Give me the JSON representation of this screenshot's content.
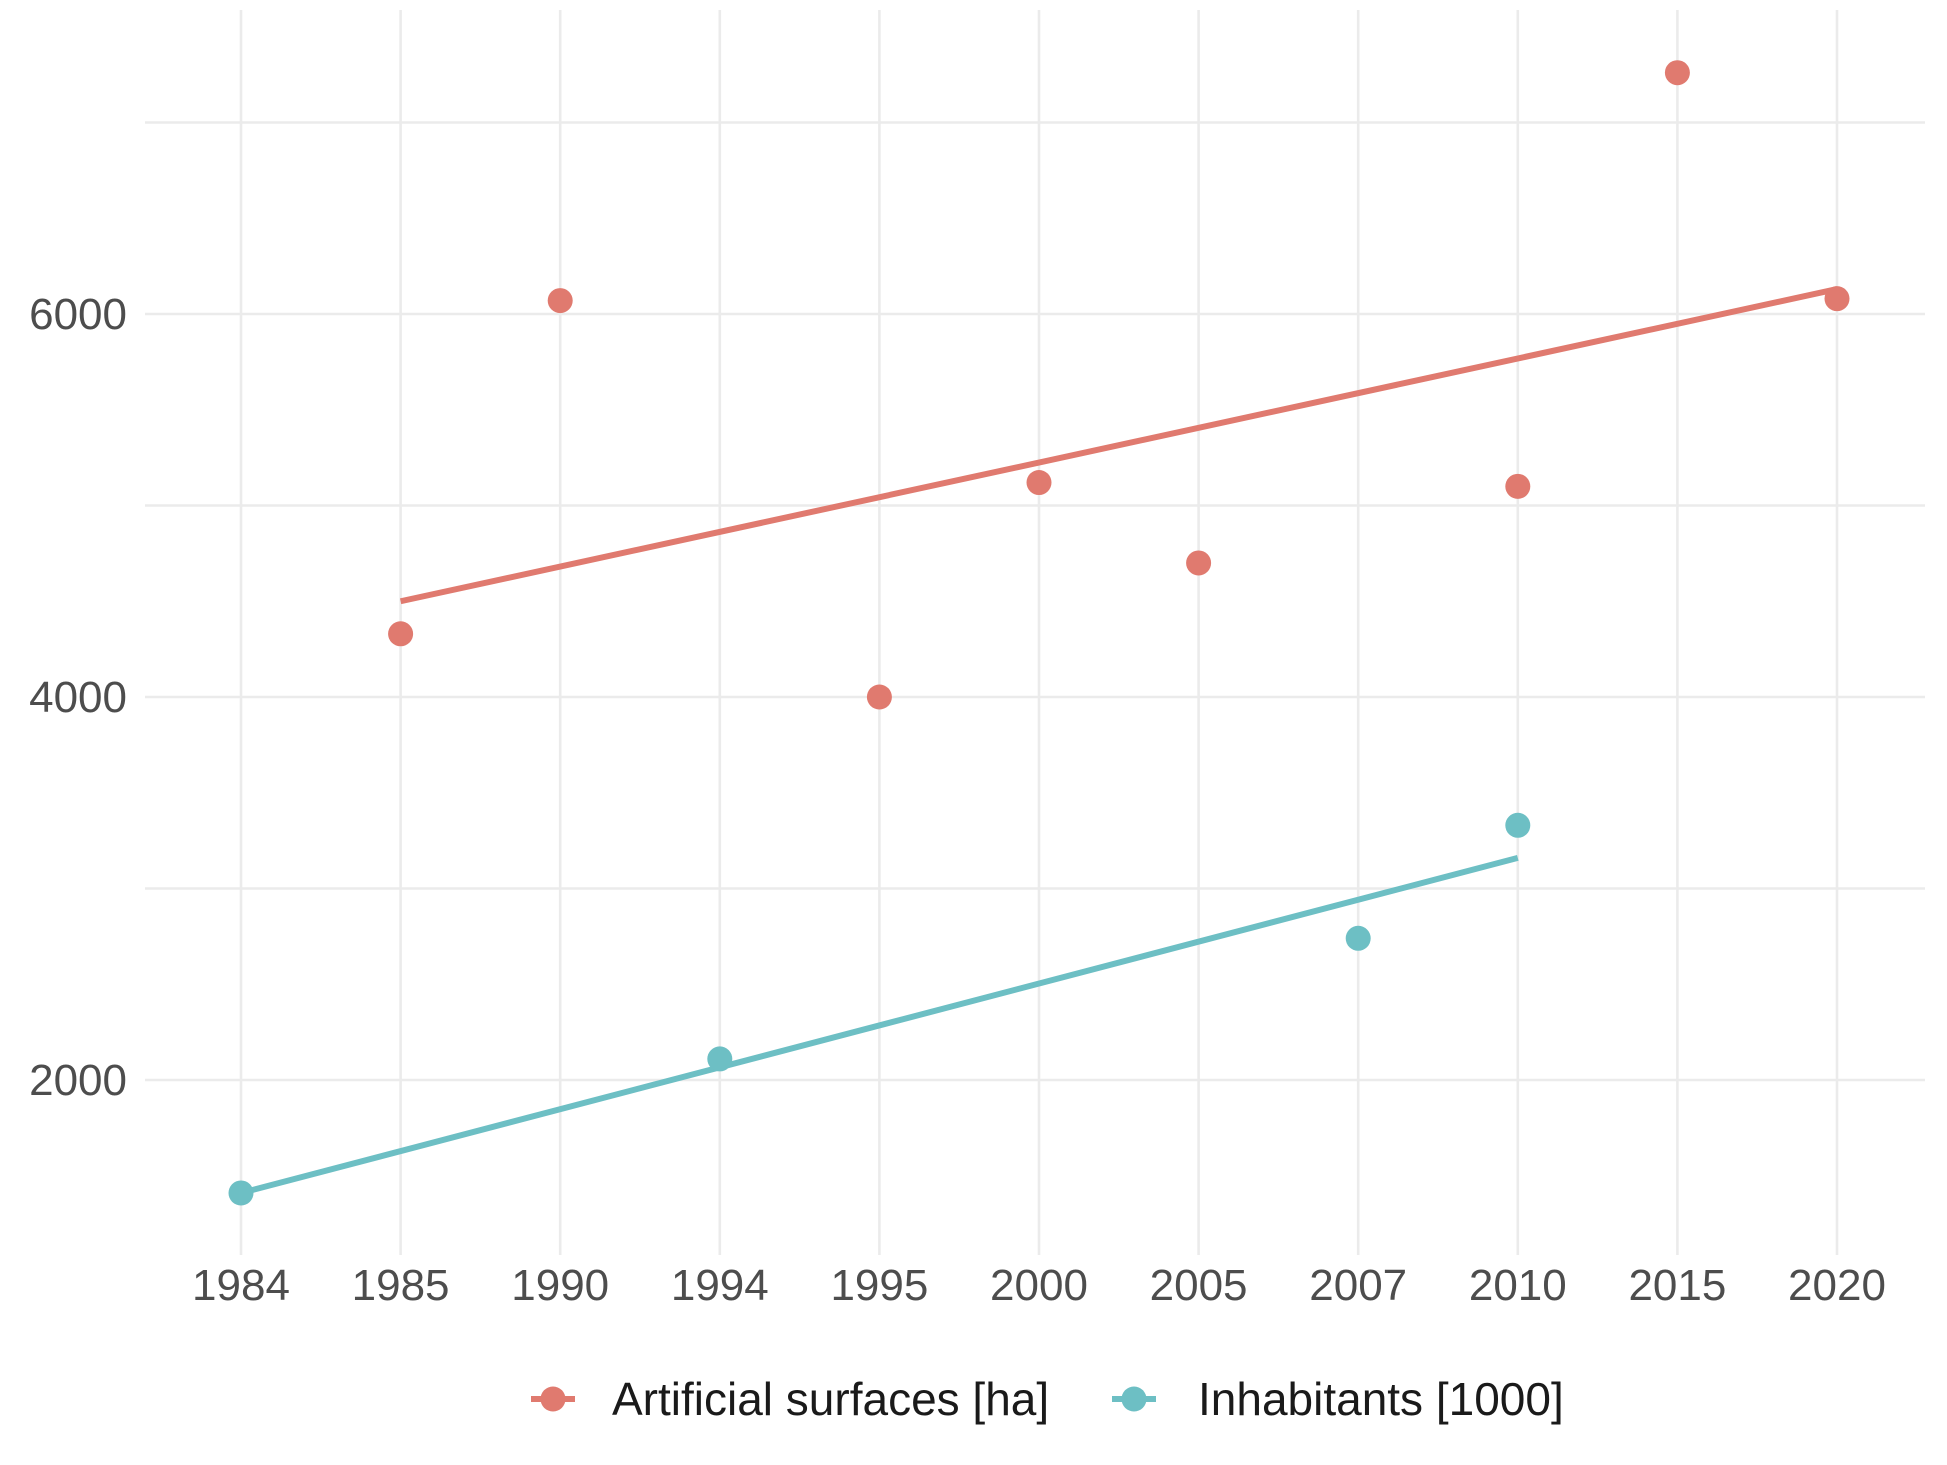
{
  "chart_data": {
    "type": "scatter",
    "title": "",
    "xlabel": "",
    "ylabel": "",
    "x_type": "categorical",
    "categories": [
      "1984",
      "1985",
      "1990",
      "1994",
      "1995",
      "2000",
      "2005",
      "2007",
      "2010",
      "2015",
      "2020"
    ],
    "ylim": [
      1100,
      7700
    ],
    "y_ticks": [
      2000,
      4000,
      6000
    ],
    "y_minor_gridlines": [
      3000,
      5000,
      7000
    ],
    "grid": true,
    "legend_position": "bottom",
    "series": [
      {
        "name": "Artificial surfaces [ha]",
        "color": "#E07A6F",
        "points": [
          {
            "x": "1985",
            "y": 4330
          },
          {
            "x": "1990",
            "y": 6070
          },
          {
            "x": "1995",
            "y": 4000
          },
          {
            "x": "2000",
            "y": 5120
          },
          {
            "x": "2005",
            "y": 4700
          },
          {
            "x": "2010",
            "y": 5100
          },
          {
            "x": "2015",
            "y": 7260
          },
          {
            "x": "2020",
            "y": 6080
          }
        ],
        "trend_line": {
          "from": {
            "x": "1985",
            "y": 4500
          },
          "to": {
            "x": "2020",
            "y": 6130
          }
        }
      },
      {
        "name": "Inhabitants [1000]",
        "color": "#6DBFC4",
        "points": [
          {
            "x": "1984",
            "y": 1410
          },
          {
            "x": "1994",
            "y": 2110
          },
          {
            "x": "2007",
            "y": 2740
          },
          {
            "x": "2010",
            "y": 3330
          }
        ],
        "trend_line": {
          "from": {
            "x": "1984",
            "y": 1410
          },
          "to": {
            "x": "2010",
            "y": 3160
          }
        }
      }
    ]
  }
}
